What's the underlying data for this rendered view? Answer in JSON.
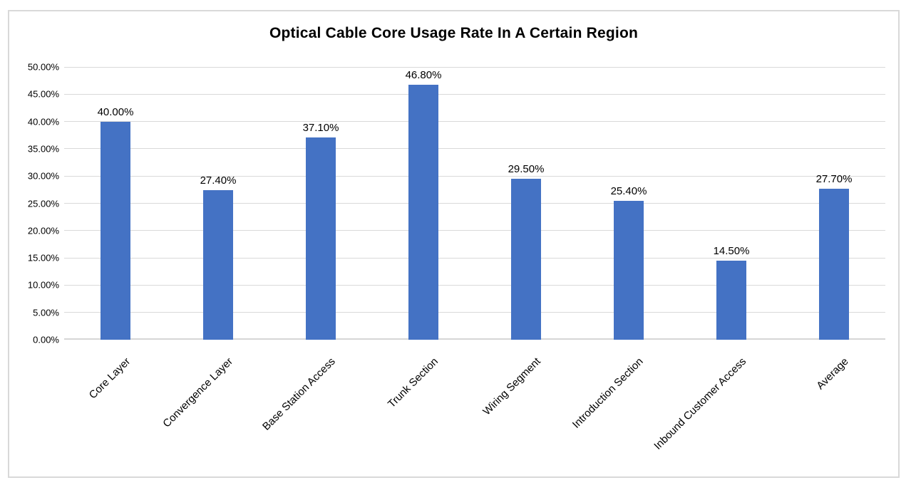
{
  "chart_data": {
    "type": "bar",
    "title": "Optical Cable Core Usage Rate In A Certain Region",
    "categories": [
      "Core Layer",
      "Convergence Layer",
      "Base Station Access",
      "Trunk Section",
      "Wiring Segment",
      "Introduction Section",
      "Inbound Customer Access",
      "Average"
    ],
    "values": [
      40.0,
      27.4,
      37.1,
      46.8,
      29.5,
      25.4,
      14.5,
      27.7
    ],
    "data_labels": [
      "40.00%",
      "27.40%",
      "37.10%",
      "46.80%",
      "29.50%",
      "25.40%",
      "14.50%",
      "27.70%"
    ],
    "xlabel": "",
    "ylabel": "",
    "ylim": [
      0,
      50
    ],
    "grid": true,
    "legend": "none",
    "y_ticks": [
      {
        "value": 0,
        "label": "0.00%"
      },
      {
        "value": 5,
        "label": "5.00%"
      },
      {
        "value": 10,
        "label": "10.00%"
      },
      {
        "value": 15,
        "label": "15.00%"
      },
      {
        "value": 20,
        "label": "20.00%"
      },
      {
        "value": 25,
        "label": "25.00%"
      },
      {
        "value": 30,
        "label": "30.00%"
      },
      {
        "value": 35,
        "label": "35.00%"
      },
      {
        "value": 40,
        "label": "40.00%"
      },
      {
        "value": 45,
        "label": "45.00%"
      },
      {
        "value": 50,
        "label": "50.00%"
      }
    ],
    "colors": {
      "bar": "#4472C4",
      "gridline": "#D9D9D9",
      "axis_line": "#D6D6D6",
      "frame_border": "#D9D9D9",
      "text": "#000000",
      "background": "#FFFFFF"
    }
  }
}
